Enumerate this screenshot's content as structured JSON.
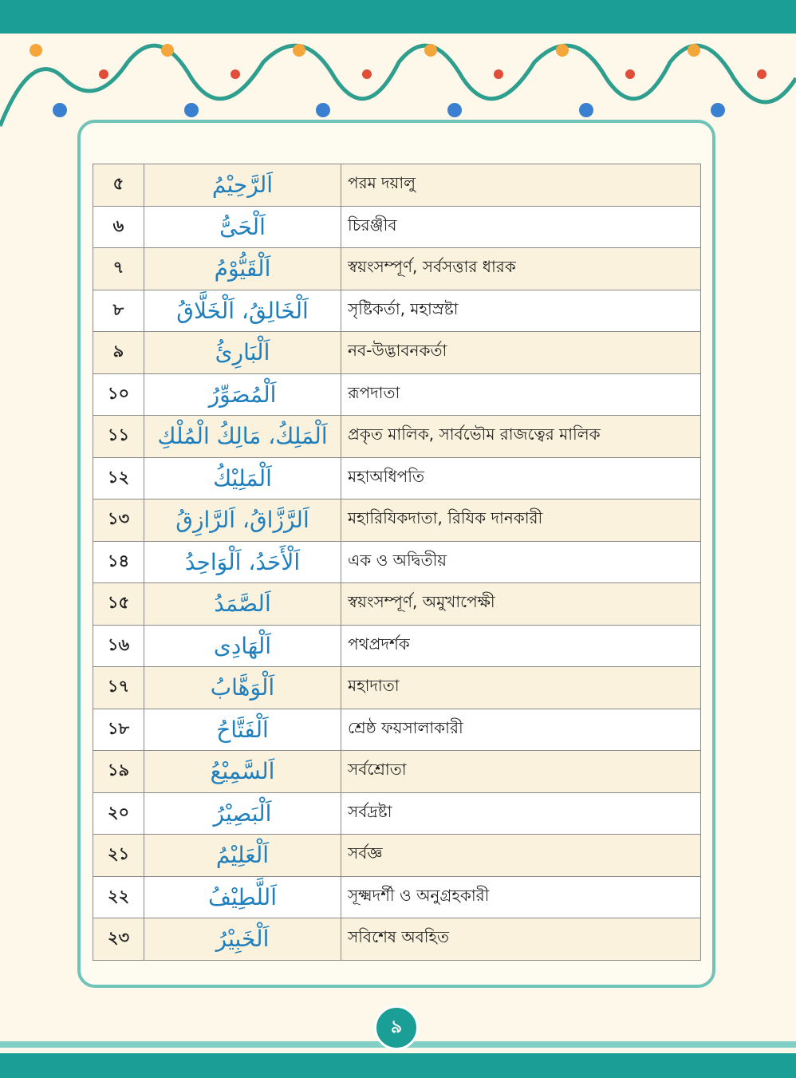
{
  "table": {
    "rows": [
      [
        "৫",
        "اَلرَّحِيْمُ",
        "পরম দয়ালু"
      ],
      [
        "৬",
        "اَلْحَىُّ",
        "চিরঞ্জীব"
      ],
      [
        "৭",
        "اَلْقَيُّوْمُ",
        "স্বয়ংসম্পূর্ণ, সর্বসত্তার ধারক"
      ],
      [
        "৮",
        "اَلْخَالِقُ، اَلْخَلَّاقُ",
        "সৃষ্টিকর্তা, মহাস্রষ্টা"
      ],
      [
        "৯",
        "اَلْبَارِئُ",
        "নব-উদ্ভাবনকর্তা"
      ],
      [
        "১০",
        "اَلْمُصَوِّرُ",
        "রূপদাতা"
      ],
      [
        "১১",
        "اَلْمَلِكُ، مَالِكُ الْمُلْكِ",
        "প্রকৃত মালিক, সার্বভৌম রাজত্বের মালিক"
      ],
      [
        "১২",
        "اَلْمَلِيْكُ",
        "মহাঅধিপতি"
      ],
      [
        "১৩",
        "اَلرَّزَّاقُ، اَلرَّازِقُ",
        "মহারিযিকদাতা, রিযিক দানকারী"
      ],
      [
        "১৪",
        "اَلْأَحَدُ، اَلْوَاحِدُ",
        "এক ও অদ্বিতীয়"
      ],
      [
        "১৫",
        "اَلصَّمَدُ",
        "স্বয়ংসম্পূর্ণ, অমুখাপেক্ষী"
      ],
      [
        "১৬",
        "اَلْهَادِى",
        "পথপ্রদর্শক"
      ],
      [
        "১৭",
        "اَلْوَهَّابُ",
        "মহাদাতা"
      ],
      [
        "১৮",
        "اَلْفَتَّاحُ",
        "শ্রেষ্ঠ ফয়সালাকারী"
      ],
      [
        "১৯",
        "اَلسَّمِيْعُ",
        "সর্বশ্রোতা"
      ],
      [
        "২০",
        "اَلْبَصِيْرُ",
        "সর্বদ্রষ্টা"
      ],
      [
        "২১",
        "اَلْعَلِيْمُ",
        "সর্বজ্ঞ"
      ],
      [
        "২২",
        "اَللَّطِيْفُ",
        "সূক্ষ্মদর্শী ও অনুগ্রহকারী"
      ],
      [
        "২৩",
        "اَلْخَبِيْرُ",
        "সবিশেষ অবহিত"
      ]
    ]
  },
  "footer": {
    "page_number": "৯"
  }
}
